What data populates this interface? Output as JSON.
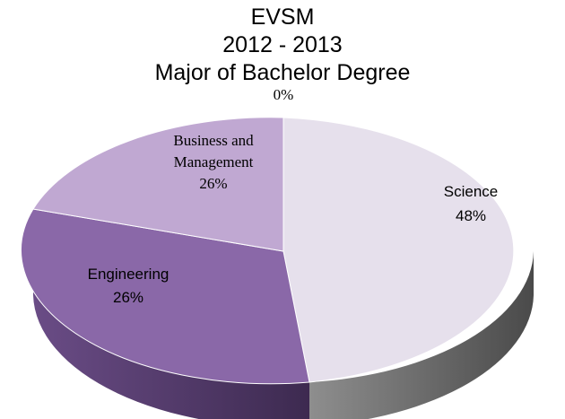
{
  "chart_data": {
    "type": "pie",
    "title": [
      "EVSM",
      "2012 - 2013",
      "Major of Bachelor Degree"
    ],
    "slices": [
      {
        "name": "Science",
        "percent_label": "48%",
        "value": 48,
        "color": "#e6e0ec"
      },
      {
        "name": "Engineering",
        "percent_label": "26%",
        "value": 26,
        "color": "#8a68a8"
      },
      {
        "name": "Business and Management",
        "name_lines": [
          "Business and",
          "Management"
        ],
        "percent_label": "26%",
        "value": 26,
        "color": "#c0a8d2"
      },
      {
        "name": "",
        "percent_label": "0%",
        "value": 0,
        "color": "#c0a8d2"
      }
    ],
    "style": "3d-pie"
  }
}
